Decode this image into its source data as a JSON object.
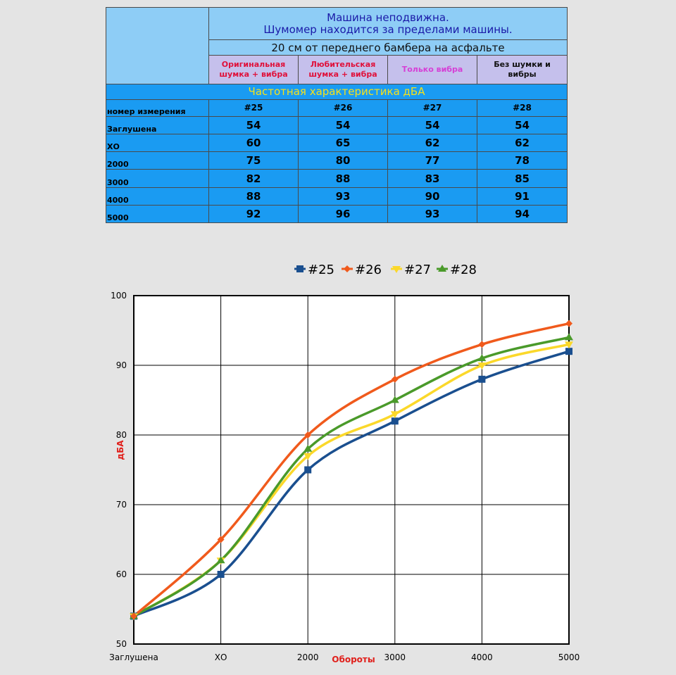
{
  "table": {
    "title_line1": "Машина неподвижна.",
    "title_line2": "Шумомер находится за пределами машины.",
    "subtitle": "20 см от переднего бамбера на асфальте",
    "columns": [
      {
        "line1": "Оригинальная",
        "line2": "шумка + вибра",
        "color": "#e0103a"
      },
      {
        "line1": "Любительская",
        "line2": "шумка + вибра",
        "color": "#e0103a"
      },
      {
        "line1": "Только вибра",
        "line2": "",
        "color": "#d63fd6"
      },
      {
        "line1": "Без шумки и",
        "line2": "вибры",
        "color": "#111111"
      }
    ],
    "band_title": "Частотная характеристика дБА",
    "band_color": "#f5e11a",
    "measure_label": "номер измерения",
    "measure_numbers": [
      "#25",
      "#26",
      "#27",
      "#28"
    ],
    "rows": [
      {
        "label": "Заглушена",
        "values": [
          "54",
          "54",
          "54",
          "54"
        ]
      },
      {
        "label": "ХО",
        "values": [
          "60",
          "65",
          "62",
          "62"
        ]
      },
      {
        "label": "2000",
        "values": [
          "75",
          "80",
          "77",
          "78"
        ]
      },
      {
        "label": "3000",
        "values": [
          "82",
          "88",
          "83",
          "85"
        ]
      },
      {
        "label": "4000",
        "values": [
          "88",
          "93",
          "90",
          "91"
        ]
      },
      {
        "label": "5000",
        "values": [
          "92",
          "96",
          "93",
          "94"
        ]
      }
    ]
  },
  "chart_data": {
    "type": "line",
    "categories": [
      "Заглушена",
      "ХО",
      "2000",
      "3000",
      "4000",
      "5000"
    ],
    "series": [
      {
        "name": "#25",
        "values": [
          54,
          60,
          75,
          82,
          88,
          92
        ],
        "color": "#1a4f8f",
        "marker": "square"
      },
      {
        "name": "#26",
        "values": [
          54,
          65,
          80,
          88,
          93,
          96
        ],
        "color": "#f05a1c",
        "marker": "diamond"
      },
      {
        "name": "#27",
        "values": [
          54,
          62,
          77,
          83,
          90,
          93
        ],
        "color": "#fbd82a",
        "marker": "triangle-down"
      },
      {
        "name": "#28",
        "values": [
          54,
          62,
          78,
          85,
          91,
          94
        ],
        "color": "#4a9a2a",
        "marker": "triangle-up"
      }
    ],
    "xlabel": "Обороты",
    "ylabel": "дБА",
    "ylim": [
      50,
      100
    ],
    "yticks": [
      50,
      60,
      70,
      80,
      90,
      100
    ],
    "grid": true,
    "legend": "top",
    "plot_background": "#ffffff",
    "axis_title_color": "#e0201c"
  }
}
